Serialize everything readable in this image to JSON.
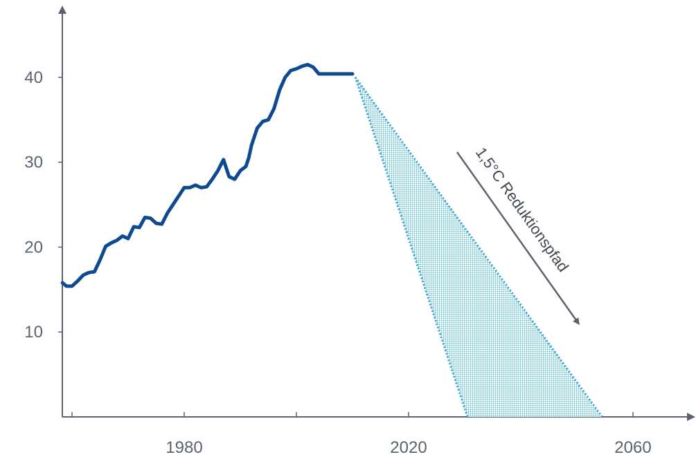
{
  "chart_data": {
    "type": "line",
    "xlim": [
      1958,
      2072
    ],
    "ylim": [
      0,
      48
    ],
    "x_ticks": [
      1960,
      1980,
      2000,
      2020,
      2040,
      2060
    ],
    "x_tick_labels": [
      "1980",
      "2020",
      "2060"
    ],
    "y_ticks": [
      10,
      20,
      30,
      40
    ],
    "y_tick_labels": [
      "10",
      "20",
      "30",
      "40"
    ],
    "grid": false,
    "series": [
      {
        "style": "solid",
        "color": "#0d4a8f",
        "x": [
          1958.3,
          1959,
          1960,
          1961,
          1962,
          1963,
          1964,
          1965,
          1966,
          1967,
          1968,
          1969,
          1970,
          1971,
          1972,
          1973,
          1974,
          1975,
          1976,
          1977,
          1978,
          1979,
          1980,
          1981,
          1982,
          1983,
          1984,
          1985,
          1986,
          1987,
          1988,
          1989,
          1990,
          1991,
          1991.5,
          1992,
          1993,
          1994,
          1995,
          1996,
          1997,
          1998,
          1999,
          2000,
          2001,
          2002,
          2003,
          2004,
          2005,
          2006,
          2007,
          2008,
          2009,
          2010
        ],
        "y": [
          15.8,
          15.4,
          15.4,
          16.0,
          16.7,
          17.0,
          17.1,
          18.5,
          20.1,
          20.5,
          20.8,
          21.3,
          21.0,
          22.4,
          22.3,
          23.5,
          23.4,
          22.8,
          22.7,
          24.0,
          25.0,
          26.0,
          27.0,
          27.0,
          27.3,
          27.0,
          27.1,
          28.0,
          29.0,
          30.3,
          28.3,
          28.0,
          29.0,
          29.5,
          30.5,
          32.0,
          34.0,
          34.8,
          35.0,
          36.3,
          38.5,
          40.0,
          40.8,
          41.0,
          41.3,
          41.5,
          41.2,
          40.4,
          40.4,
          40.4,
          40.4,
          40.4,
          40.4,
          40.4
        ]
      }
    ],
    "reduction_corridor": {
      "start": [
        2010.5,
        40.0
      ],
      "end_low": [
        2030.5,
        0
      ],
      "end_high": [
        2054.5,
        0
      ],
      "fill": "#4fb6c8",
      "edge": "#2a9fd6"
    },
    "annotations": [
      {
        "text": "1,5°C Reduktionspfad"
      }
    ]
  }
}
